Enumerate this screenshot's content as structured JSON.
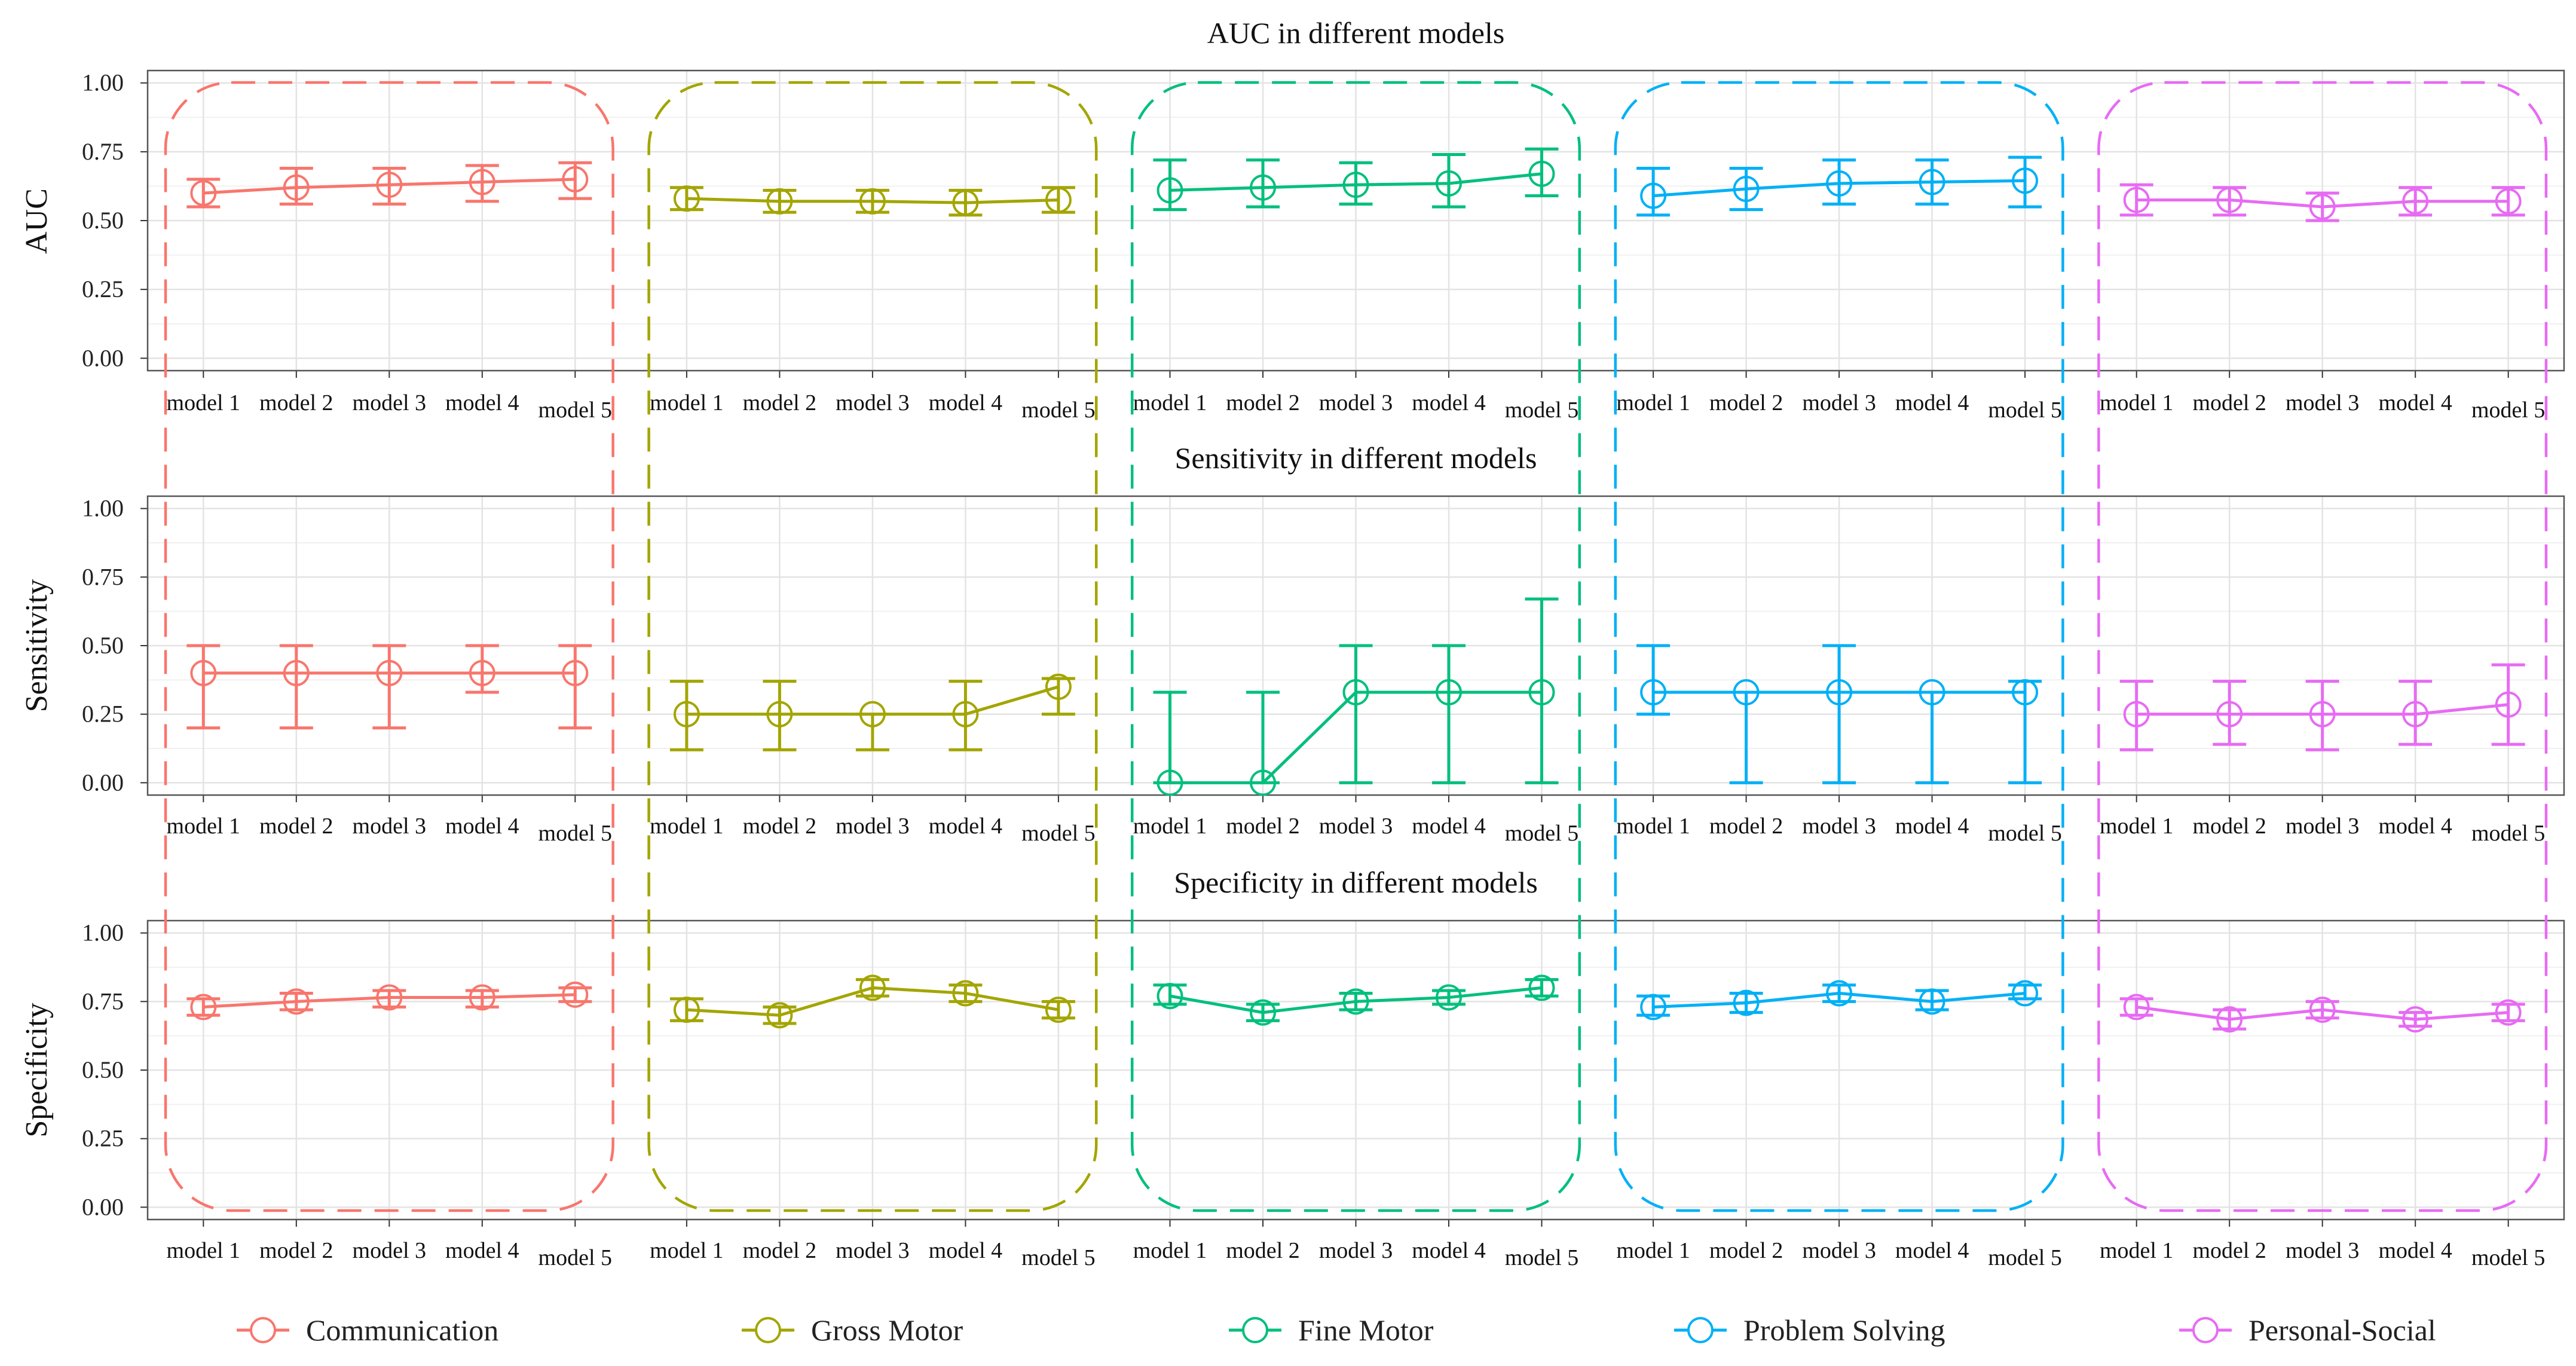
{
  "chart_data": {
    "type": "line",
    "x": [
      "model 1",
      "model 2",
      "model 3",
      "model 4",
      "model 5"
    ],
    "groups": [
      {
        "name": "Communication",
        "color": "#F8766D"
      },
      {
        "name": "Gross Motor",
        "color": "#A3A500"
      },
      {
        "name": "Fine Motor",
        "color": "#00BF7D"
      },
      {
        "name": "Problem Solving",
        "color": "#00B0F6"
      },
      {
        "name": "Personal-Social",
        "color": "#E76BF3"
      }
    ],
    "ylim": [
      0,
      1
    ],
    "yticks": [
      "0.00",
      "0.25",
      "0.50",
      "0.75",
      "1.00"
    ],
    "legend": "bottom",
    "grid": true,
    "panels": [
      {
        "title": "AUC in different models",
        "ylabel": "AUC",
        "series": [
          {
            "group": "Communication",
            "values": [
              0.6,
              0.62,
              0.63,
              0.64,
              0.65
            ],
            "lower": [
              0.55,
              0.56,
              0.56,
              0.57,
              0.58
            ],
            "upper": [
              0.65,
              0.69,
              0.69,
              0.7,
              0.71
            ]
          },
          {
            "group": "Gross Motor",
            "values": [
              0.58,
              0.57,
              0.57,
              0.565,
              0.575
            ],
            "lower": [
              0.54,
              0.53,
              0.53,
              0.52,
              0.53
            ],
            "upper": [
              0.62,
              0.61,
              0.61,
              0.61,
              0.62
            ]
          },
          {
            "group": "Fine Motor",
            "values": [
              0.61,
              0.62,
              0.63,
              0.635,
              0.67
            ],
            "lower": [
              0.54,
              0.55,
              0.56,
              0.55,
              0.59
            ],
            "upper": [
              0.72,
              0.72,
              0.71,
              0.74,
              0.76
            ]
          },
          {
            "group": "Problem Solving",
            "values": [
              0.59,
              0.615,
              0.635,
              0.64,
              0.645
            ],
            "lower": [
              0.52,
              0.54,
              0.56,
              0.56,
              0.55
            ],
            "upper": [
              0.69,
              0.69,
              0.72,
              0.72,
              0.73
            ]
          },
          {
            "group": "Personal-Social",
            "values": [
              0.575,
              0.575,
              0.55,
              0.57,
              0.57
            ],
            "lower": [
              0.52,
              0.52,
              0.5,
              0.52,
              0.52
            ],
            "upper": [
              0.63,
              0.62,
              0.6,
              0.62,
              0.62
            ]
          }
        ]
      },
      {
        "title": "Sensitivity in different models",
        "ylabel": "Sensitivity",
        "series": [
          {
            "group": "Communication",
            "values": [
              0.4,
              0.4,
              0.4,
              0.4,
              0.4
            ],
            "lower": [
              0.2,
              0.2,
              0.2,
              0.33,
              0.2
            ],
            "upper": [
              0.5,
              0.5,
              0.5,
              0.5,
              0.5
            ]
          },
          {
            "group": "Gross Motor",
            "values": [
              0.25,
              0.25,
              0.25,
              0.25,
              0.35
            ],
            "lower": [
              0.12,
              0.12,
              0.12,
              0.12,
              0.25
            ],
            "upper": [
              0.37,
              0.37,
              0.25,
              0.37,
              0.38
            ]
          },
          {
            "group": "Fine Motor",
            "values": [
              0.0,
              0.0,
              0.33,
              0.33,
              0.33
            ],
            "lower": [
              0.0,
              0.0,
              0.0,
              0.0,
              0.0
            ],
            "upper": [
              0.33,
              0.33,
              0.5,
              0.5,
              0.67
            ]
          },
          {
            "group": "Problem Solving",
            "values": [
              0.33,
              0.33,
              0.33,
              0.33,
              0.33
            ],
            "lower": [
              0.25,
              0.0,
              0.0,
              0.0,
              0.0
            ],
            "upper": [
              0.5,
              0.33,
              0.5,
              0.33,
              0.37
            ]
          },
          {
            "group": "Personal-Social",
            "values": [
              0.25,
              0.25,
              0.25,
              0.25,
              0.285
            ],
            "lower": [
              0.12,
              0.14,
              0.12,
              0.14,
              0.14
            ],
            "upper": [
              0.37,
              0.37,
              0.37,
              0.37,
              0.43
            ]
          }
        ]
      },
      {
        "title": "Specificity in different models",
        "ylabel": "Specificity",
        "series": [
          {
            "group": "Communication",
            "values": [
              0.73,
              0.75,
              0.765,
              0.765,
              0.775
            ],
            "lower": [
              0.7,
              0.72,
              0.73,
              0.73,
              0.75
            ],
            "upper": [
              0.76,
              0.78,
              0.79,
              0.79,
              0.8
            ]
          },
          {
            "group": "Gross Motor",
            "values": [
              0.72,
              0.7,
              0.8,
              0.78,
              0.72
            ],
            "lower": [
              0.68,
              0.67,
              0.77,
              0.75,
              0.69
            ],
            "upper": [
              0.76,
              0.73,
              0.83,
              0.81,
              0.75
            ]
          },
          {
            "group": "Fine Motor",
            "values": [
              0.77,
              0.71,
              0.75,
              0.765,
              0.8
            ],
            "lower": [
              0.74,
              0.68,
              0.72,
              0.74,
              0.77
            ],
            "upper": [
              0.81,
              0.74,
              0.78,
              0.79,
              0.83
            ]
          },
          {
            "group": "Problem Solving",
            "values": [
              0.73,
              0.745,
              0.78,
              0.75,
              0.78
            ],
            "lower": [
              0.7,
              0.71,
              0.75,
              0.72,
              0.76
            ],
            "upper": [
              0.77,
              0.78,
              0.81,
              0.79,
              0.81
            ]
          },
          {
            "group": "Personal-Social",
            "values": [
              0.73,
              0.685,
              0.72,
              0.685,
              0.71
            ],
            "lower": [
              0.7,
              0.65,
              0.69,
              0.66,
              0.68
            ],
            "upper": [
              0.76,
              0.72,
              0.75,
              0.71,
              0.74
            ]
          }
        ]
      }
    ]
  }
}
